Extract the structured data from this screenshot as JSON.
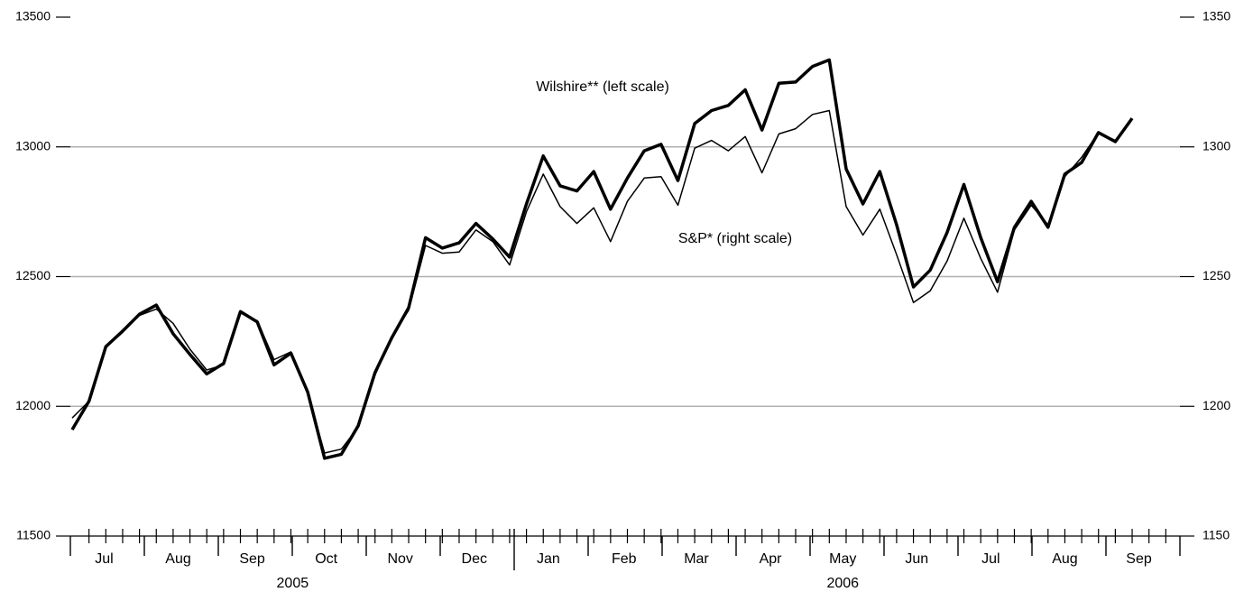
{
  "chart_data": {
    "type": "line",
    "annotations": [
      "Wilshire** (left scale)",
      "S&P* (right scale)"
    ],
    "x": [
      0,
      1,
      2,
      3,
      4,
      5,
      6,
      7,
      8,
      9,
      10,
      11,
      12,
      13,
      14,
      15,
      16,
      17,
      18,
      19,
      20,
      21,
      22,
      23,
      24,
      25,
      26,
      27,
      28,
      29,
      30,
      31,
      32,
      33,
      34,
      35,
      36,
      37,
      38,
      39,
      40,
      41,
      42,
      43,
      44,
      45,
      46,
      47,
      48,
      49,
      50,
      51,
      52,
      53,
      54,
      55,
      56,
      57,
      58,
      59,
      60,
      61,
      62,
      63
    ],
    "xlim": [
      0,
      66
    ],
    "xticks": [
      {
        "value": 1.9,
        "label": "Jul"
      },
      {
        "value": 6.3,
        "label": "Aug"
      },
      {
        "value": 10.7,
        "label": "Sep"
      },
      {
        "value": 15.1,
        "label": "Oct"
      },
      {
        "value": 19.5,
        "label": "Nov"
      },
      {
        "value": 23.9,
        "label": "Dec"
      },
      {
        "value": 28.3,
        "label": "Jan"
      },
      {
        "value": 32.8,
        "label": "Feb"
      },
      {
        "value": 37.1,
        "label": "Mar"
      },
      {
        "value": 41.5,
        "label": "Apr"
      },
      {
        "value": 45.8,
        "label": "May"
      },
      {
        "value": 50.2,
        "label": "Jun"
      },
      {
        "value": 54.6,
        "label": "Jul"
      },
      {
        "value": 59.0,
        "label": "Aug"
      },
      {
        "value": 63.4,
        "label": "Sep"
      }
    ],
    "year_ticks": [
      {
        "value": 13.1,
        "label": "2005"
      },
      {
        "value": 45.8,
        "label": "2006"
      }
    ],
    "ylim": [
      11500,
      13500
    ],
    "yticks": [
      11500,
      12000,
      12500,
      13000,
      13500
    ],
    "y2lim": [
      1150,
      1350
    ],
    "y2ticks": [
      1150,
      1200,
      1250,
      1300,
      1350
    ],
    "grid": true,
    "series": [
      {
        "name": "Wilshire",
        "color": "#000000",
        "width": 3.5,
        "values": [
          11910,
          12020,
          12230,
          12290,
          12355,
          12390,
          12280,
          12200,
          12125,
          12165,
          12365,
          12325,
          12160,
          12205,
          12055,
          11800,
          11815,
          11925,
          12130,
          12265,
          12380,
          12650,
          12610,
          12630,
          12705,
          12645,
          12575,
          12780,
          12965,
          12850,
          12830,
          12905,
          12760,
          12880,
          12985,
          13010,
          12870,
          13090,
          13140,
          13160,
          13220,
          13065,
          13245,
          13250,
          13310,
          13335,
          12915,
          12780,
          12905,
          12700,
          12460,
          12525,
          12670,
          12855,
          12650,
          12480,
          12690,
          12790,
          12690,
          12895,
          12940,
          13055,
          13020,
          13110
        ]
      },
      {
        "name": "S&P",
        "color": "#000000",
        "width": 1.5,
        "axis": "y2",
        "values": [
          1195.5,
          1202,
          1222.5,
          1229.5,
          1235,
          1237.5,
          1232,
          1222,
          1214,
          1216,
          1236,
          1233,
          1218,
          1221,
          1205,
          1182,
          1183.5,
          1192,
          1212,
          1227,
          1237,
          1262,
          1259,
          1259.5,
          1268,
          1263.5,
          1254.5,
          1275,
          1289.5,
          1277,
          1270.5,
          1276.5,
          1263.5,
          1279,
          1288,
          1288.5,
          1277.5,
          1299.5,
          1302.5,
          1298.5,
          1304,
          1290,
          1305,
          1307,
          1312.5,
          1314,
          1277,
          1266,
          1276,
          1258.5,
          1240,
          1244.5,
          1256,
          1272.5,
          1257,
          1244,
          1268,
          1277.5,
          1270,
          1288.5,
          1296,
          1305.5,
          1302.5,
          1310.5
        ]
      }
    ]
  }
}
